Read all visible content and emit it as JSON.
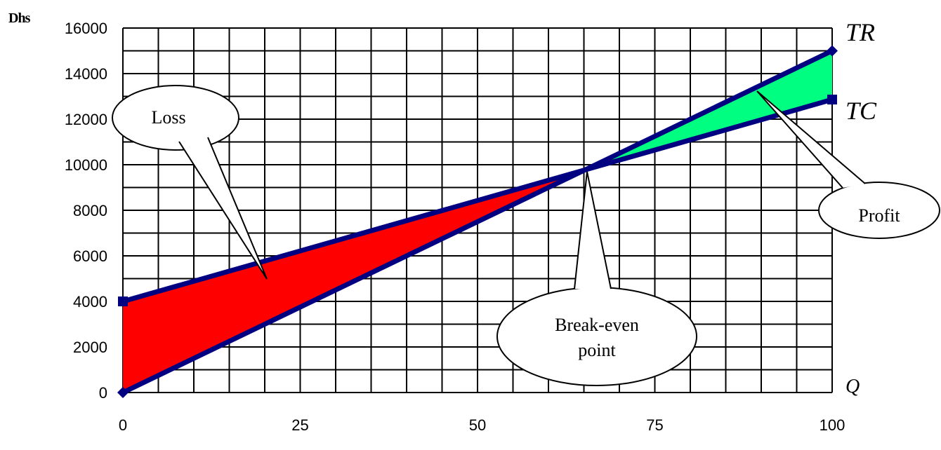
{
  "chart_data": {
    "type": "line",
    "ylabel": "Dhs",
    "xlabel": "Q",
    "xlim": [
      0,
      100
    ],
    "ylim": [
      0,
      16000
    ],
    "x_ticks": [
      0,
      25,
      50,
      75,
      100
    ],
    "y_ticks": [
      0,
      2000,
      4000,
      6000,
      8000,
      10000,
      12000,
      14000,
      16000
    ],
    "grid": true,
    "series": [
      {
        "name": "TR",
        "x": [
          0,
          100
        ],
        "values": [
          0,
          15000
        ],
        "color": "#000080"
      },
      {
        "name": "TC",
        "x": [
          0,
          100
        ],
        "values": [
          4000,
          12860
        ],
        "color": "#000080"
      }
    ],
    "regions": [
      {
        "label": "Loss",
        "color": "#ff0000"
      },
      {
        "label": "Profit",
        "color": "#00ff80"
      }
    ],
    "annotations": [
      {
        "text": "Loss",
        "target": [
          20,
          5000
        ]
      },
      {
        "text": "Profit",
        "target": [
          90,
          13200
        ]
      },
      {
        "text": "Break-even point",
        "lines": [
          "Break-even",
          "point"
        ],
        "target": [
          65,
          9760
        ]
      }
    ]
  }
}
